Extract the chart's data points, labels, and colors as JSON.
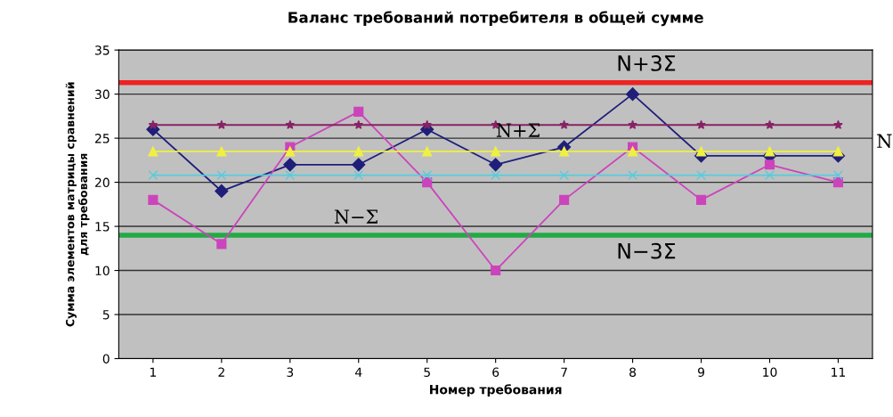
{
  "chart_data": {
    "type": "line",
    "title": "Баланс требований потребителя в общей сумме",
    "xlabel": "Номер требования",
    "ylabel": "Сумма элементов матрицы сравнений\nдля требования",
    "categories": [
      "1",
      "2",
      "3",
      "4",
      "5",
      "6",
      "7",
      "8",
      "9",
      "10",
      "11"
    ],
    "series": [
      {
        "color": "#1f1f7a",
        "marker": "diamond",
        "values": [
          26,
          19,
          22,
          22,
          26,
          22,
          24,
          30,
          23,
          23,
          23
        ]
      },
      {
        "color": "#cc44bb",
        "marker": "square",
        "values": [
          18,
          13,
          24,
          28,
          20,
          10,
          18,
          24,
          18,
          22,
          20
        ]
      },
      {
        "color": "#882266",
        "marker": "star",
        "values": [
          26.5,
          26.5,
          26.5,
          26.5,
          26.5,
          26.5,
          26.5,
          26.5,
          26.5,
          26.5,
          26.5
        ]
      },
      {
        "color": "#f0f040",
        "marker": "triangle",
        "values": [
          23.5,
          23.5,
          23.5,
          23.5,
          23.5,
          23.5,
          23.5,
          23.5,
          23.5,
          23.5,
          23.5
        ]
      },
      {
        "color": "#55ccdd",
        "marker": "cross",
        "values": [
          20.8,
          20.8,
          20.8,
          20.8,
          20.8,
          20.8,
          20.8,
          20.8,
          20.8,
          20.8,
          20.8
        ]
      }
    ],
    "ref_lines": [
      {
        "axis": "y",
        "value": 31.3,
        "label": "N+3Σ",
        "color": "#ee2222"
      },
      {
        "axis": "y",
        "value": 14,
        "label": "N−3Σ",
        "color": "#22aa44"
      }
    ],
    "annotations": [
      "N+Σ",
      "N−Σ",
      "N"
    ],
    "ylim": [
      0,
      35
    ],
    "yticks": [
      0,
      5,
      10,
      15,
      20,
      25,
      30,
      35
    ],
    "grid": "y",
    "legend": false
  }
}
